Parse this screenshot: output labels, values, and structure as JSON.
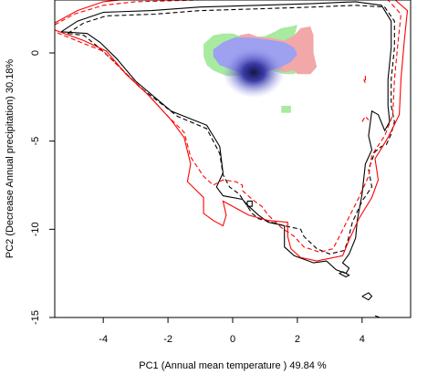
{
  "chart_data": {
    "type": "contour",
    "xlabel": "PC1 (Annual mean temperature ) 49.84 %",
    "ylabel": "PC2 (Decrease Annual precipitation) 30.18%",
    "xlim": [
      -5.5,
      5.5
    ],
    "ylim": [
      -15,
      3
    ],
    "xticks": [
      -4,
      -2,
      0,
      2,
      4
    ],
    "yticks": [
      0,
      -5,
      -10,
      -15
    ],
    "xtick_labels": [
      "-4",
      "-2",
      "0",
      "2",
      "4"
    ],
    "ytick_labels": [
      "0",
      "-5",
      "-10",
      "-15"
    ],
    "grid": false,
    "series": [
      {
        "style": "solid",
        "color": "#000000",
        "points": [
          [
            -5.3,
            1.2
          ],
          [
            -4.8,
            1.8
          ],
          [
            -4,
            2.3
          ],
          [
            -2.5,
            2.4
          ],
          [
            -1,
            2.6
          ],
          [
            0.8,
            2.7
          ],
          [
            2.5,
            2.8
          ],
          [
            3.8,
            2.9
          ],
          [
            4.6,
            2.7
          ],
          [
            4.9,
            1.8
          ],
          [
            4.9,
            0.3
          ],
          [
            4.8,
            -1.5
          ],
          [
            4.8,
            -3
          ],
          [
            4.85,
            -3.9
          ],
          [
            4.7,
            -4.4
          ],
          [
            4.5,
            -3.5
          ],
          [
            4.3,
            -3.3
          ],
          [
            4.2,
            -4.7
          ],
          [
            4.3,
            -5.5
          ],
          [
            4.1,
            -6.3
          ],
          [
            4,
            -8
          ],
          [
            3.85,
            -9.5
          ],
          [
            3.8,
            -10.5
          ],
          [
            3.6,
            -11.4
          ],
          [
            3.4,
            -11.9
          ],
          [
            3.6,
            -12.2
          ],
          [
            3.5,
            -12.5
          ],
          [
            3.2,
            -12.3
          ],
          [
            2.9,
            -11.8
          ],
          [
            2.5,
            -11.9
          ],
          [
            1.9,
            -11.5
          ],
          [
            1.6,
            -11
          ],
          [
            1.6,
            -9.8
          ],
          [
            1.1,
            -9.6
          ],
          [
            0.8,
            -9.2
          ],
          [
            0.5,
            -8.7
          ],
          [
            0.3,
            -8.3
          ],
          [
            -0.3,
            -8.1
          ],
          [
            -0.5,
            -7.6
          ],
          [
            -0.3,
            -6.8
          ],
          [
            -0.4,
            -5.3
          ],
          [
            -0.8,
            -4.1
          ],
          [
            -1.9,
            -3.3
          ],
          [
            -3,
            -1.6
          ],
          [
            -3.6,
            -0.3
          ],
          [
            -4.1,
            0.6
          ],
          [
            -4.5,
            1.1
          ],
          [
            -5.3,
            1.2
          ]
        ]
      },
      {
        "style": "dashed",
        "color": "#000000",
        "points": [
          [
            -5.1,
            1.1
          ],
          [
            -4.6,
            1.7
          ],
          [
            -3.9,
            2.1
          ],
          [
            -2.4,
            2.2
          ],
          [
            -1,
            2.4
          ],
          [
            0.8,
            2.5
          ],
          [
            2.5,
            2.6
          ],
          [
            3.8,
            2.7
          ],
          [
            4.7,
            2.6
          ],
          [
            5,
            1.8
          ],
          [
            5,
            0.3
          ],
          [
            4.9,
            -1.5
          ],
          [
            4.9,
            -3
          ],
          [
            5,
            -3.9
          ],
          [
            4.9,
            -4.6
          ],
          [
            4.75,
            -5.2
          ],
          [
            4.6,
            -5.3
          ],
          [
            4.4,
            -5.6
          ],
          [
            4.2,
            -6.6
          ],
          [
            4.3,
            -7.6
          ],
          [
            4,
            -8.4
          ],
          [
            3.7,
            -9.6
          ],
          [
            3.55,
            -10.7
          ],
          [
            3.45,
            -11.2
          ],
          [
            3,
            -11.4
          ],
          [
            2.6,
            -11.1
          ],
          [
            2.2,
            -10.4
          ],
          [
            2.1,
            -10
          ],
          [
            1.6,
            -9.8
          ],
          [
            1.2,
            -9.6
          ],
          [
            0.8,
            -9.4
          ],
          [
            0.6,
            -9.1
          ],
          [
            0.2,
            -8
          ],
          [
            -0.1,
            -7.6
          ],
          [
            -0.3,
            -6.9
          ],
          [
            -0.4,
            -5.7
          ],
          [
            -0.8,
            -4.3
          ],
          [
            -1.7,
            -3.6
          ],
          [
            -2.9,
            -1.9
          ],
          [
            -3.6,
            -0.6
          ],
          [
            -4.2,
            0.4
          ],
          [
            -4.6,
            1
          ],
          [
            -5.1,
            1.1
          ]
        ]
      },
      {
        "style": "solid",
        "color": "#ff0000",
        "points": [
          [
            -5.5,
            1.7
          ],
          [
            -4.8,
            2.4
          ],
          [
            -4,
            2.9
          ],
          [
            -3,
            3.1
          ],
          [
            -1,
            3.2
          ],
          [
            1,
            3.25
          ],
          [
            3,
            3.3
          ],
          [
            4.9,
            3.2
          ],
          [
            5.4,
            2.4
          ],
          [
            5.3,
            0.6
          ],
          [
            5.2,
            -1.5
          ],
          [
            5.15,
            -3.5
          ],
          [
            4.8,
            -4.8
          ],
          [
            4.4,
            -6
          ],
          [
            4.5,
            -7.2
          ],
          [
            4.3,
            -8.2
          ],
          [
            3.9,
            -9.4
          ],
          [
            3.6,
            -10.6
          ],
          [
            3.4,
            -11.5
          ],
          [
            2.6,
            -11.8
          ],
          [
            2.1,
            -11.6
          ],
          [
            1.8,
            -11.1
          ],
          [
            1.7,
            -10.4
          ],
          [
            1.7,
            -9.6
          ],
          [
            1.1,
            -9.5
          ],
          [
            0.5,
            -9.2
          ],
          [
            0.1,
            -8.8
          ],
          [
            -0.3,
            -8.4
          ],
          [
            -0.2,
            -9.2
          ],
          [
            -0.3,
            -9.8
          ],
          [
            -0.6,
            -9.5
          ],
          [
            -0.9,
            -9.1
          ],
          [
            -0.9,
            -8.2
          ],
          [
            -1.4,
            -7.3
          ],
          [
            -1.3,
            -6.3
          ],
          [
            -1.5,
            -4.8
          ],
          [
            -1.9,
            -3.8
          ],
          [
            -2.6,
            -2.4
          ],
          [
            -3.3,
            -1.2
          ],
          [
            -3.9,
            0.1
          ],
          [
            -4.6,
            0.7
          ],
          [
            -5.5,
            1.3
          ]
        ]
      },
      {
        "style": "dashed",
        "color": "#ff0000",
        "points": [
          [
            -5.5,
            1.6
          ],
          [
            -4.9,
            2.2
          ],
          [
            -4,
            2.7
          ],
          [
            -3,
            2.9
          ],
          [
            -1,
            3
          ],
          [
            1,
            3.05
          ],
          [
            3,
            3.1
          ],
          [
            4.8,
            3
          ],
          [
            5.2,
            2.2
          ],
          [
            5.1,
            0.4
          ],
          [
            5,
            -1.5
          ],
          [
            4.95,
            -3.5
          ],
          [
            4.7,
            -4.7
          ],
          [
            4.3,
            -5.8
          ],
          [
            4.2,
            -7
          ],
          [
            3.9,
            -8.2
          ],
          [
            3.6,
            -9.3
          ],
          [
            3.3,
            -10.4
          ],
          [
            3.1,
            -11.1
          ],
          [
            2.7,
            -11.3
          ],
          [
            2.2,
            -11
          ],
          [
            1.9,
            -10.4
          ],
          [
            1.5,
            -9.9
          ],
          [
            1.1,
            -9.2
          ],
          [
            0.9,
            -8.7
          ],
          [
            0.6,
            -8.3
          ],
          [
            0.3,
            -7.8
          ],
          [
            0.3,
            -7.5
          ],
          [
            0.1,
            -7.3
          ],
          [
            -0.3,
            -7.2
          ],
          [
            -0.6,
            -7.5
          ],
          [
            -0.9,
            -7
          ],
          [
            -1.3,
            -5.9
          ],
          [
            -1.5,
            -4.5
          ],
          [
            -2,
            -3.6
          ],
          [
            -2.7,
            -2.2
          ],
          [
            -3.4,
            -1
          ],
          [
            -4,
            0.1
          ],
          [
            -4.7,
            0.6
          ],
          [
            -5.5,
            1.2
          ]
        ]
      }
    ],
    "small_contours": [
      {
        "style": "solid",
        "color": "#000000",
        "points": [
          [
            0.45,
            -8.4
          ],
          [
            0.6,
            -8.4
          ],
          [
            0.6,
            -8.7
          ],
          [
            0.45,
            -8.7
          ],
          [
            0.45,
            -8.4
          ]
        ]
      },
      {
        "style": "solid",
        "color": "#000000",
        "points": [
          [
            4.0,
            -13.8
          ],
          [
            4.2,
            -13.6
          ],
          [
            4.3,
            -13.8
          ],
          [
            4.2,
            -14.0
          ],
          [
            4.0,
            -13.8
          ]
        ]
      },
      {
        "style": "dashed",
        "color": "#000000",
        "points": [
          [
            4.4,
            -14.9
          ],
          [
            4.7,
            -15.1
          ]
        ]
      },
      {
        "style": "solid",
        "color": "#000000",
        "points": [
          [
            3.4,
            -12.4
          ],
          [
            3.6,
            -12.6
          ],
          [
            3.5,
            -12.7
          ],
          [
            3.3,
            -12.5
          ],
          [
            3.4,
            -12.4
          ]
        ]
      },
      {
        "style": "dashed",
        "color": "#ff0000",
        "points": [
          [
            4.1,
            -1.3
          ],
          [
            4.1,
            -1.7
          ],
          [
            4.05,
            -1.5
          ]
        ]
      },
      {
        "style": "dashed",
        "color": "#ff0000",
        "points": [
          [
            4,
            -3.9
          ],
          [
            4.1,
            -3.6
          ],
          [
            4.2,
            -3.8
          ]
        ]
      }
    ],
    "occupancy_colors": {
      "overlap": "#9ea0f0",
      "high_density": "#15154a",
      "species_1_only": "#a8eaa0",
      "species_2_only": "#f2a8a8"
    },
    "occupancy_regions": {
      "green": [
        [
          -0.6,
          1
        ],
        [
          -0.3,
          1.1
        ],
        [
          0,
          1.1
        ],
        [
          0.3,
          0.9
        ],
        [
          0.6,
          0.9
        ],
        [
          1,
          0.95
        ],
        [
          1.3,
          1.2
        ],
        [
          1.5,
          1.4
        ],
        [
          1.8,
          1.5
        ],
        [
          2,
          1.6
        ],
        [
          1.9,
          0.9
        ],
        [
          2.2,
          0.4
        ],
        [
          2.3,
          -0.2
        ],
        [
          2.2,
          -0.8
        ],
        [
          1.9,
          -1.2
        ],
        [
          1.6,
          -1.2
        ],
        [
          1.2,
          -1
        ],
        [
          0.8,
          -1.2
        ],
        [
          0.4,
          -1.3
        ],
        [
          -0.2,
          -1.3
        ],
        [
          -0.6,
          -1
        ],
        [
          -0.8,
          -0.7
        ],
        [
          -0.9,
          -0.2
        ],
        [
          -0.9,
          0.5
        ],
        [
          -0.6,
          1
        ]
      ],
      "red": [
        [
          0.2,
          1
        ],
        [
          0.5,
          1.1
        ],
        [
          0.8,
          0.9
        ],
        [
          1.2,
          0.85
        ],
        [
          1.6,
          0.7
        ],
        [
          1.9,
          1
        ],
        [
          2.1,
          1.4
        ],
        [
          2.4,
          1.5
        ],
        [
          2.5,
          1
        ],
        [
          2.5,
          0
        ],
        [
          2.6,
          -0.8
        ],
        [
          2.4,
          -1.2
        ],
        [
          2,
          -1.2
        ],
        [
          1.9,
          -1
        ],
        [
          1.6,
          -1.1
        ],
        [
          1.2,
          -0.8
        ],
        [
          0.9,
          -0.7
        ],
        [
          0.6,
          0.1
        ],
        [
          0.3,
          0.6
        ],
        [
          0.2,
          1
        ]
      ],
      "blue": [
        [
          -0.3,
          0.6
        ],
        [
          0.1,
          0.9
        ],
        [
          0.7,
          0.85
        ],
        [
          1.1,
          0.75
        ],
        [
          1.6,
          0.6
        ],
        [
          1.9,
          0.3
        ],
        [
          2,
          -0.1
        ],
        [
          1.8,
          -0.5
        ],
        [
          1.5,
          -0.8
        ],
        [
          1.1,
          -1
        ],
        [
          0.7,
          -1.2
        ],
        [
          0.3,
          -1.2
        ],
        [
          -0.1,
          -0.9
        ],
        [
          -0.4,
          -0.7
        ],
        [
          -0.6,
          -0.2
        ],
        [
          -0.6,
          0.2
        ],
        [
          -0.3,
          0.6
        ]
      ],
      "green_island": [
        [
          1.5,
          -3
        ],
        [
          1.8,
          -3
        ],
        [
          1.8,
          -3.4
        ],
        [
          1.5,
          -3.4
        ],
        [
          1.5,
          -3
        ]
      ],
      "core_center": [
        0.65,
        -1.1
      ]
    }
  }
}
